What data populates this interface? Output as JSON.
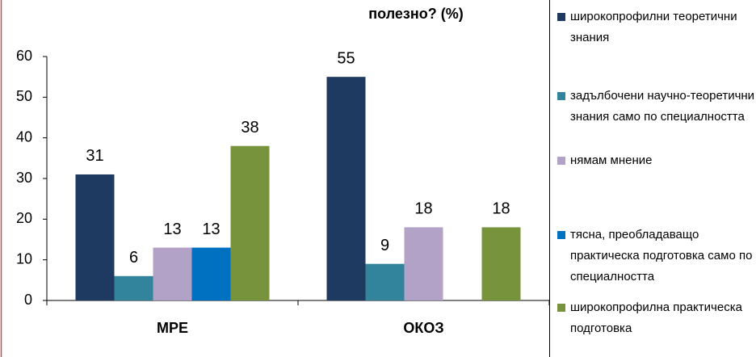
{
  "chart_data": {
    "type": "bar",
    "title": "полезно? (%)",
    "categories": [
      "МРЕ",
      "ОКОЗ"
    ],
    "series": [
      {
        "name": "широкопрофилни теоретични знания",
        "color": "#1f3a60",
        "values": [
          31,
          55
        ]
      },
      {
        "name": "задълбочени научно-теоретични знания само по специалността",
        "color": "#31849b",
        "values": [
          6,
          9
        ]
      },
      {
        "name": "нямам мнение",
        "color": "#b3a2c7",
        "values": [
          13,
          18
        ]
      },
      {
        "name": "тясна, преобладаващо практическа подготовка само по специалността",
        "color": "#0070c0",
        "values": [
          13,
          null
        ]
      },
      {
        "name": "широкопрофилна практическа подготовка",
        "color": "#77933c",
        "values": [
          38,
          18
        ]
      }
    ],
    "ylim": [
      0,
      60
    ],
    "yticks": [
      0,
      10,
      20,
      30,
      40,
      50,
      60
    ],
    "grid": false,
    "legend": "right"
  }
}
